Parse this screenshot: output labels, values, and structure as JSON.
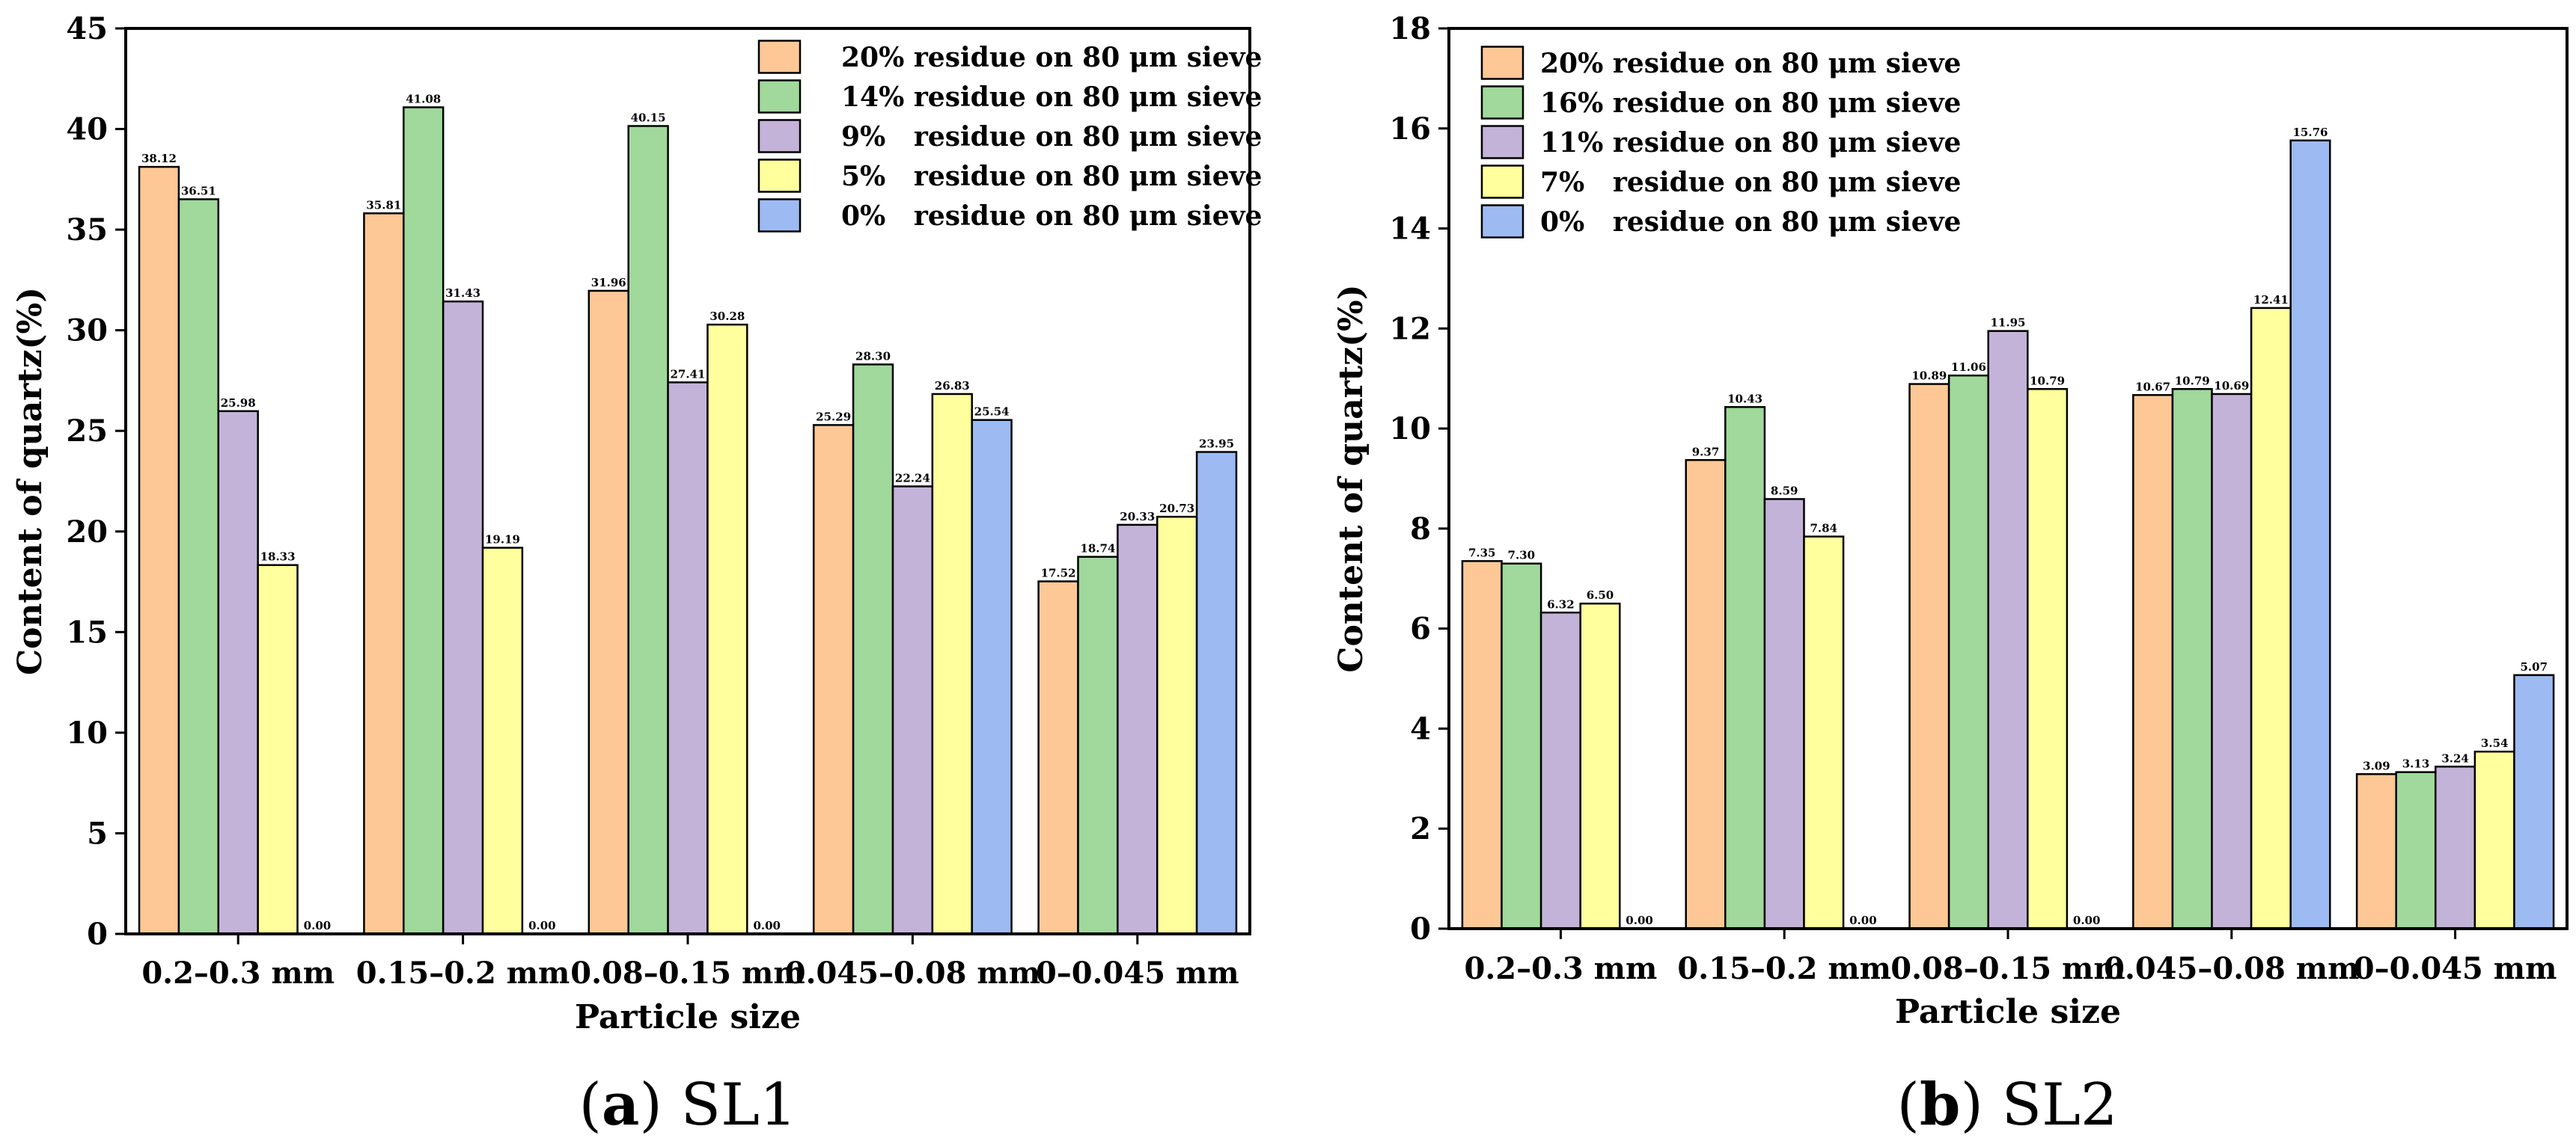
{
  "chart_data": [
    {
      "type": "bar",
      "panel": "a",
      "caption_letter": "a",
      "caption_name": "SL1",
      "xlabel": "Particle size",
      "ylabel": "Content of quartz(%)",
      "ylim": [
        0,
        45
      ],
      "yticks": [
        "0",
        "5",
        "10",
        "15",
        "20",
        "25",
        "30",
        "35",
        "40",
        "45"
      ],
      "legend_position": "top-right",
      "categories": [
        "0.2–0.3 mm",
        "0.15–0.2 mm",
        "0.08–0.15 mm",
        "0.045–0.08 mm",
        "0–0.045 mm"
      ],
      "series": [
        {
          "name": "20% residue on 80 μm sieve",
          "color": "#FDC896",
          "values": [
            38.12,
            35.81,
            31.96,
            25.29,
            17.52
          ],
          "labels": [
            "38.12",
            "35.81",
            "31.96",
            "25.29",
            "17.52"
          ]
        },
        {
          "name": "14% residue on 80 μm sieve",
          "color": "#A0D99B",
          "values": [
            36.51,
            41.08,
            40.15,
            28.3,
            18.74
          ],
          "labels": [
            "36.51",
            "41.08",
            "40.15",
            "28.30",
            "18.74"
          ]
        },
        {
          "name": "9%   residue on 80 μm sieve",
          "color": "#C4B3D9",
          "values": [
            25.98,
            31.43,
            27.41,
            22.24,
            20.33
          ],
          "labels": [
            "25.98",
            "31.43",
            "27.41",
            "22.24",
            "20.33"
          ]
        },
        {
          "name": "5%   residue on 80 μm sieve",
          "color": "#FFFF9E",
          "values": [
            18.33,
            19.19,
            30.28,
            26.83,
            20.73
          ],
          "labels": [
            "18.33",
            "19.19",
            "30.28",
            "26.83",
            "20.73"
          ]
        },
        {
          "name": "0%   residue on 80 μm sieve",
          "color": "#9DBBF2",
          "values": [
            0.0,
            0.0,
            0.0,
            25.54,
            23.95
          ],
          "labels": [
            "0.00",
            "0.00",
            "0.00",
            "25.54",
            "23.95"
          ]
        }
      ]
    },
    {
      "type": "bar",
      "panel": "b",
      "caption_letter": "b",
      "caption_name": "SL2",
      "xlabel": "Particle size",
      "ylabel": "Content of quartz(%)",
      "ylim": [
        0,
        18
      ],
      "yticks": [
        "0",
        "2",
        "4",
        "6",
        "8",
        "10",
        "12",
        "14",
        "16",
        "18"
      ],
      "legend_position": "top-left",
      "categories": [
        "0.2–0.3 mm",
        "0.15–0.2 mm",
        "0.08–0.15 mm",
        "0.045–0.08 mm",
        "0–0.045 mm"
      ],
      "series": [
        {
          "name": "20% residue on 80 μm sieve",
          "color": "#FDC896",
          "values": [
            7.35,
            9.37,
            10.89,
            10.67,
            3.09
          ],
          "labels": [
            "7.35",
            "9.37",
            "10.89",
            "10.67",
            "3.09"
          ]
        },
        {
          "name": "16% residue on 80 μm sieve",
          "color": "#A0D99B",
          "values": [
            7.3,
            10.43,
            11.06,
            10.79,
            3.13
          ],
          "labels": [
            "7.30",
            "10.43",
            "11.06",
            "10.79",
            "3.13"
          ]
        },
        {
          "name": "11% residue on 80 μm sieve",
          "color": "#C4B3D9",
          "values": [
            6.32,
            8.59,
            11.95,
            10.69,
            3.24
          ],
          "labels": [
            "6.32",
            "8.59",
            "11.95",
            "10.69",
            "3.24"
          ]
        },
        {
          "name": "7%   residue on 80 μm sieve",
          "color": "#FFFF9E",
          "values": [
            6.5,
            7.84,
            10.79,
            12.41,
            3.54
          ],
          "labels": [
            "6.50",
            "7.84",
            "10.79",
            "12.41",
            "3.54"
          ]
        },
        {
          "name": "0%   residue on 80 μm sieve",
          "color": "#9DBBF2",
          "values": [
            0.0,
            0.0,
            0.0,
            15.76,
            5.07
          ],
          "labels": [
            "0.00",
            "0.00",
            "0.00",
            "15.76",
            "5.07"
          ]
        }
      ]
    }
  ]
}
